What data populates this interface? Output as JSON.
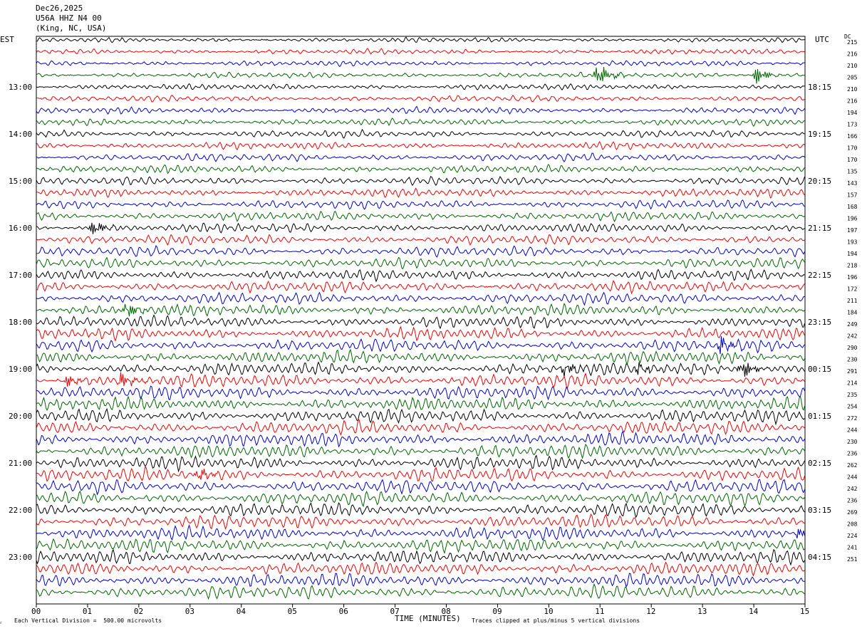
{
  "header": {
    "date": "Dec26,2025",
    "station": "U56A HHZ N4 00",
    "location": "(King, NC, USA)"
  },
  "axes": {
    "left_tz": "EST",
    "right_tz": "UTC",
    "dc_label": "DC",
    "xlabel": "TIME (MINUTES)"
  },
  "footer": {
    "scale_note": "Each Vertical Division =  500.00 microvolts",
    "clip_note": "Traces clipped at plus/minus 5 vertical divisions"
  },
  "colors": {
    "trace_cycle": [
      "#000000",
      "#ee0000",
      "#0000cc",
      "#006600"
    ]
  },
  "chart_data": {
    "type": "line",
    "title": "U56A HHZ N4 00",
    "xlabel": "TIME (MINUTES)",
    "xlim": [
      0,
      15
    ],
    "x_ticks": [
      "00",
      "01",
      "02",
      "03",
      "04",
      "05",
      "06",
      "07",
      "08",
      "09",
      "10",
      "11",
      "12",
      "13",
      "14",
      "15"
    ],
    "rows_per_hour": 4,
    "row_count": 48,
    "left_hour_labels": [
      "13:00",
      "14:00",
      "15:00",
      "16:00",
      "17:00",
      "18:00",
      "19:00",
      "20:00",
      "21:00",
      "22:00",
      "23:00"
    ],
    "right_hour_labels": [
      "18:15",
      "19:15",
      "20:15",
      "21:15",
      "22:15",
      "23:15",
      "00:15",
      "01:15",
      "02:15",
      "03:15",
      "04:15"
    ],
    "dc_offsets": [
      215,
      216,
      210,
      205,
      210,
      216,
      194,
      173,
      166,
      170,
      170,
      135,
      143,
      157,
      168,
      196,
      197,
      193,
      194,
      218,
      196,
      172,
      211,
      184,
      249,
      242,
      290,
      230,
      291,
      214,
      235,
      254,
      272,
      244,
      230,
      236,
      262,
      244,
      242,
      236,
      269,
      208,
      224,
      241,
      251
    ],
    "events": [
      {
        "row": 3,
        "minute": 10.95,
        "amplitude": 2.2
      },
      {
        "row": 3,
        "minute": 14.05,
        "amplitude": 1.6
      },
      {
        "row": 16,
        "minute": 1.1,
        "amplitude": 1.5
      },
      {
        "row": 23,
        "minute": 1.75,
        "amplitude": 1.6
      },
      {
        "row": 26,
        "minute": 13.35,
        "amplitude": 1.5
      },
      {
        "row": 28,
        "minute": 10.3,
        "amplitude": 1.3
      },
      {
        "row": 28,
        "minute": 11.75,
        "amplitude": 1.0
      },
      {
        "row": 28,
        "minute": 13.75,
        "amplitude": 2.2
      },
      {
        "row": 29,
        "minute": 0.6,
        "amplitude": 1.1
      },
      {
        "row": 29,
        "minute": 1.65,
        "amplitude": 1.5
      },
      {
        "row": 37,
        "minute": 3.15,
        "amplitude": 1.4
      },
      {
        "row": 42,
        "minute": 14.9,
        "amplitude": 1.7
      }
    ]
  }
}
